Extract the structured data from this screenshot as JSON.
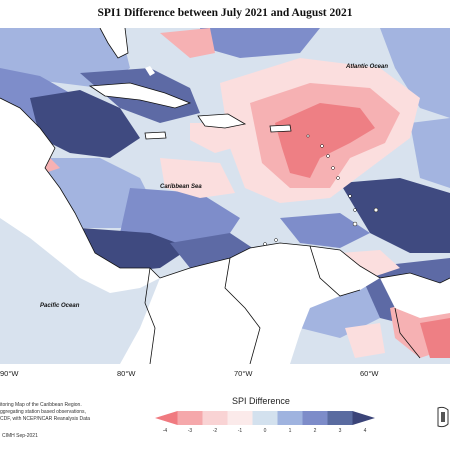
{
  "title": "SPI1 Difference between July 2021 and August 2021",
  "regions": {
    "atlantic": "Atlantic Ocean",
    "caribbean": "Caribbean Sea",
    "pacific": "Pacific Ocean"
  },
  "longitude_labels": [
    "90°W",
    "80°W",
    "70°W",
    "60°W"
  ],
  "credit_lines": [
    "itoring Map of the Caribbean Region.",
    "ggregating station based observations,",
    "CDF, with NCEP/NCAR Reanalysis Data"
  ],
  "footer": "CIMH Sep-2021",
  "legend": {
    "title": "SPI Difference",
    "ticks": [
      "-4",
      "-3",
      "-2",
      "-1",
      "0",
      "1",
      "2",
      "3",
      "4"
    ],
    "colors": [
      "#f07a80",
      "#f5a8ab",
      "#f9d3d4",
      "#fbeaea",
      "#d3e1ee",
      "#9fb3df",
      "#7d8cc9",
      "#5a6ba0",
      "#3b4478"
    ]
  },
  "colors": {
    "land": "#ffffff",
    "coast": "#111111",
    "strong_dry": "#ee7f84",
    "dry": "#f6b1b3",
    "light_dry": "#fbdede",
    "neutral": "#d8e2ee",
    "wet": "#a3b4e0",
    "wetter": "#7e8dca",
    "very_wet": "#5d6aa5",
    "extreme_wet": "#3f4a80"
  }
}
